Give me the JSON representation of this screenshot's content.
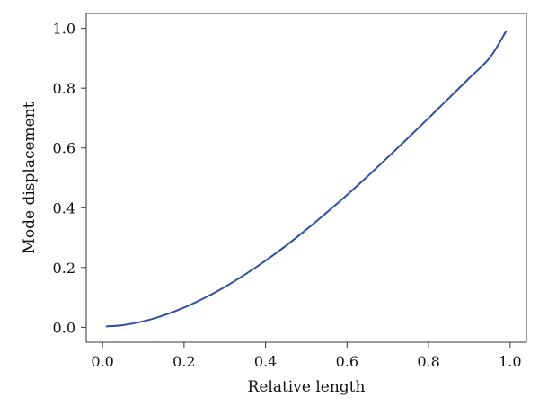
{
  "chart_data": {
    "type": "line",
    "title": "",
    "xlabel": "Relative length",
    "ylabel": "Mode displacement",
    "xlim": [
      -0.04,
      1.04
    ],
    "ylim": [
      -0.05,
      1.05
    ],
    "grid": false,
    "x_ticks": [
      {
        "value": 0.0,
        "label": "0.0"
      },
      {
        "value": 0.2,
        "label": "0.2"
      },
      {
        "value": 0.4,
        "label": "0.4"
      },
      {
        "value": 0.6,
        "label": "0.6"
      },
      {
        "value": 0.8,
        "label": "0.8"
      },
      {
        "value": 1.0,
        "label": "1.0"
      }
    ],
    "y_ticks": [
      {
        "value": 0.0,
        "label": "0.0"
      },
      {
        "value": 0.2,
        "label": "0.2"
      },
      {
        "value": 0.4,
        "label": "0.4"
      },
      {
        "value": 0.6,
        "label": "0.6"
      },
      {
        "value": 0.8,
        "label": "0.8"
      },
      {
        "value": 1.0,
        "label": "1.0"
      }
    ],
    "series": [
      {
        "color": "#2f4f9f",
        "x": [
          0.01,
          0.05,
          0.1,
          0.15,
          0.2,
          0.25,
          0.3,
          0.35,
          0.4,
          0.45,
          0.5,
          0.55,
          0.6,
          0.65,
          0.7,
          0.75,
          0.8,
          0.85,
          0.9,
          0.95,
          0.99
        ],
        "y": [
          0.003,
          0.007,
          0.02,
          0.04,
          0.066,
          0.098,
          0.135,
          0.177,
          0.223,
          0.273,
          0.327,
          0.384,
          0.443,
          0.505,
          0.569,
          0.634,
          0.7,
          0.767,
          0.834,
          0.902,
          0.99
        ]
      }
    ]
  }
}
